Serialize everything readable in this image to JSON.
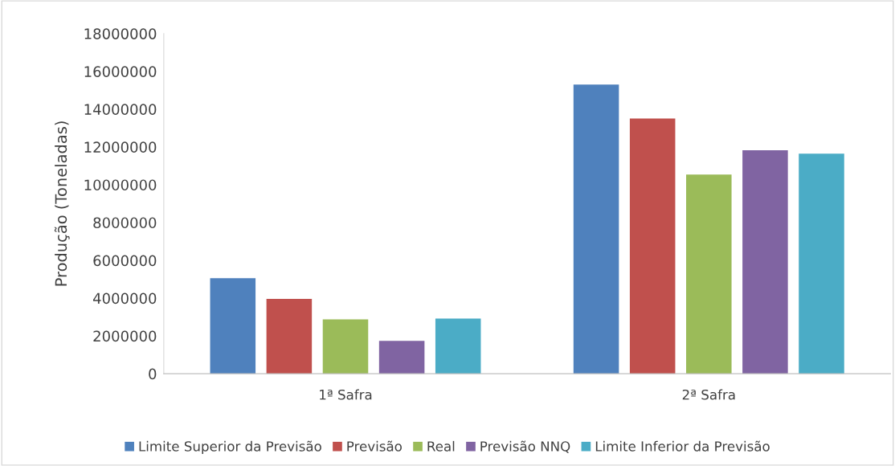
{
  "chart_data": {
    "type": "bar",
    "ylabel": "Produção (Toneladas)",
    "categories": [
      "1ª Safra",
      "2ª Safra"
    ],
    "series": [
      {
        "name": "Limite Superior da Previsão",
        "color": "#4f81bd",
        "values": [
          5060000,
          15300000
        ]
      },
      {
        "name": "Previsão",
        "color": "#c0504d",
        "values": [
          3960000,
          13500000
        ]
      },
      {
        "name": "Real",
        "color": "#9bbb59",
        "values": [
          2880000,
          10540000
        ]
      },
      {
        "name": "Previsão NNQ",
        "color": "#8064a2",
        "values": [
          1740000,
          11830000
        ]
      },
      {
        "name": "Limite Inferior da Previsão",
        "color": "#4bacc6",
        "values": [
          2920000,
          11650000
        ]
      }
    ],
    "ylim": [
      0,
      18000000
    ],
    "yticks": [
      0,
      2000000,
      4000000,
      6000000,
      8000000,
      10000000,
      12000000,
      14000000,
      16000000,
      18000000
    ],
    "grid": false,
    "legend": "bottom"
  }
}
